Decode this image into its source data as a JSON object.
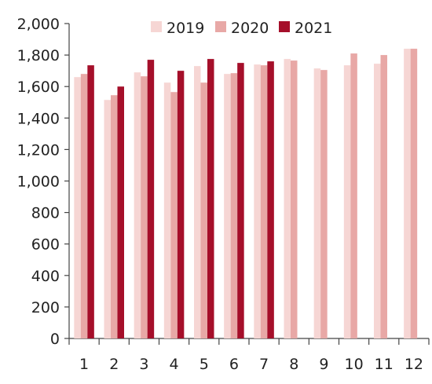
{
  "chart_data": {
    "type": "bar",
    "title": "",
    "xlabel": "",
    "ylabel": "",
    "ylim": [
      0,
      2000
    ],
    "yticks": [
      0,
      200,
      400,
      600,
      800,
      1000,
      1200,
      1400,
      1600,
      1800,
      2000
    ],
    "ytick_labels": [
      "0",
      "200",
      "400",
      "600",
      "800",
      "1,000",
      "1,200",
      "1,400",
      "1,600",
      "1,800",
      "2,000"
    ],
    "categories": [
      "1",
      "2",
      "3",
      "4",
      "5",
      "6",
      "7",
      "8",
      "9",
      "10",
      "11",
      "12"
    ],
    "grid": false,
    "legend_position": "top",
    "series": [
      {
        "name": "2019",
        "color": "#f6d6d4",
        "values": [
          1660,
          1515,
          1690,
          1625,
          1730,
          1680,
          1740,
          1775,
          1715,
          1735,
          1745,
          1840
        ]
      },
      {
        "name": "2020",
        "color": "#e8a8a6",
        "values": [
          1680,
          1545,
          1665,
          1565,
          1625,
          1685,
          1735,
          1765,
          1705,
          1810,
          1800,
          1840
        ]
      },
      {
        "name": "2021",
        "color": "#a50f2a",
        "values": [
          1735,
          1600,
          1770,
          1700,
          1775,
          1750,
          1760,
          null,
          null,
          null,
          null,
          null
        ]
      }
    ]
  }
}
